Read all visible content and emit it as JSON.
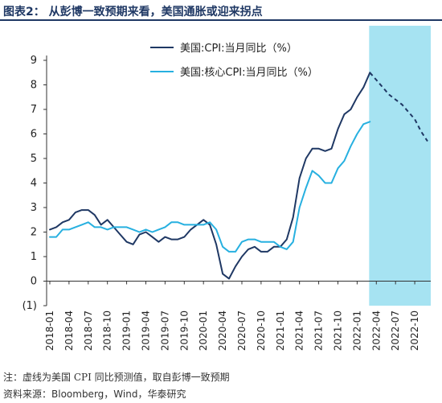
{
  "header": {
    "title": "图表2：  从彭博一致预期来看，美国通胀或迎来拐点",
    "rule_color": "#1f3864"
  },
  "footer": {
    "note": "注：虚线为美国 CPI 同比预测值，取自彭博一致预期",
    "source": "资料来源：Bloomberg，Wind，华泰研究"
  },
  "chart_data": {
    "type": "line",
    "title": "",
    "xlabel": "",
    "ylabel": "",
    "ylim": [
      -1,
      9
    ],
    "y_ticks": [
      "9",
      "8",
      "7",
      "6",
      "5",
      "4",
      "3",
      "2",
      "1",
      "0",
      "(1)"
    ],
    "x_tick_labels": [
      "2018-01",
      "2018-04",
      "2018-07",
      "2018-10",
      "2019-01",
      "2019-04",
      "2019-07",
      "2019-10",
      "2020-01",
      "2020-04",
      "2020-07",
      "2020-10",
      "2021-01",
      "2021-04",
      "2021-07",
      "2021-10",
      "2022-01",
      "2022-04",
      "2022-07",
      "2022-10"
    ],
    "x_range": [
      "2018-01",
      "2022-12"
    ],
    "grid": false,
    "legend_position": "top-center",
    "forecast_shading": {
      "from": "2022-03",
      "to": "2022-12",
      "color": "#a6e3f2"
    },
    "series": [
      {
        "name": "美国:CPI:当月同比（%）",
        "color": "#1f3864",
        "x": [
          "2018-01",
          "2018-02",
          "2018-03",
          "2018-04",
          "2018-05",
          "2018-06",
          "2018-07",
          "2018-08",
          "2018-09",
          "2018-10",
          "2018-11",
          "2018-12",
          "2019-01",
          "2019-02",
          "2019-03",
          "2019-04",
          "2019-05",
          "2019-06",
          "2019-07",
          "2019-08",
          "2019-09",
          "2019-10",
          "2019-11",
          "2019-12",
          "2020-01",
          "2020-02",
          "2020-03",
          "2020-04",
          "2020-05",
          "2020-06",
          "2020-07",
          "2020-08",
          "2020-09",
          "2020-10",
          "2020-11",
          "2020-12",
          "2021-01",
          "2021-02",
          "2021-03",
          "2021-04",
          "2021-05",
          "2021-06",
          "2021-07",
          "2021-08",
          "2021-09",
          "2021-10",
          "2021-11",
          "2021-12",
          "2022-01",
          "2022-02",
          "2022-03"
        ],
        "values": [
          2.1,
          2.2,
          2.4,
          2.5,
          2.8,
          2.9,
          2.9,
          2.7,
          2.3,
          2.5,
          2.2,
          1.9,
          1.6,
          1.5,
          1.9,
          2.0,
          1.8,
          1.6,
          1.8,
          1.7,
          1.7,
          1.8,
          2.1,
          2.3,
          2.5,
          2.3,
          1.5,
          0.3,
          0.1,
          0.6,
          1.0,
          1.3,
          1.4,
          1.2,
          1.2,
          1.4,
          1.4,
          1.7,
          2.6,
          4.2,
          5.0,
          5.4,
          5.4,
          5.3,
          5.4,
          6.2,
          6.8,
          7.0,
          7.5,
          7.9,
          8.5
        ],
        "forecast": {
          "x": [
            "2022-03",
            "2022-04",
            "2022-05",
            "2022-06",
            "2022-07",
            "2022-08",
            "2022-09",
            "2022-10",
            "2022-11",
            "2022-12"
          ],
          "values": [
            8.5,
            8.2,
            7.9,
            7.6,
            7.4,
            7.2,
            6.9,
            6.6,
            6.1,
            5.7
          ],
          "style": "dashed"
        }
      },
      {
        "name": "美国:核心CPI:当月同比（%）",
        "color": "#27b0e0",
        "x": [
          "2018-01",
          "2018-02",
          "2018-03",
          "2018-04",
          "2018-05",
          "2018-06",
          "2018-07",
          "2018-08",
          "2018-09",
          "2018-10",
          "2018-11",
          "2018-12",
          "2019-01",
          "2019-02",
          "2019-03",
          "2019-04",
          "2019-05",
          "2019-06",
          "2019-07",
          "2019-08",
          "2019-09",
          "2019-10",
          "2019-11",
          "2019-12",
          "2020-01",
          "2020-02",
          "2020-03",
          "2020-04",
          "2020-05",
          "2020-06",
          "2020-07",
          "2020-08",
          "2020-09",
          "2020-10",
          "2020-11",
          "2020-12",
          "2021-01",
          "2021-02",
          "2021-03",
          "2021-04",
          "2021-05",
          "2021-06",
          "2021-07",
          "2021-08",
          "2021-09",
          "2021-10",
          "2021-11",
          "2021-12",
          "2022-01",
          "2022-02",
          "2022-03"
        ],
        "values": [
          1.8,
          1.8,
          2.1,
          2.1,
          2.2,
          2.3,
          2.4,
          2.2,
          2.2,
          2.1,
          2.2,
          2.2,
          2.2,
          2.1,
          2.0,
          2.1,
          2.0,
          2.1,
          2.2,
          2.4,
          2.4,
          2.3,
          2.3,
          2.3,
          2.3,
          2.4,
          2.1,
          1.4,
          1.2,
          1.2,
          1.6,
          1.7,
          1.7,
          1.6,
          1.6,
          1.6,
          1.4,
          1.3,
          1.6,
          3.0,
          3.8,
          4.5,
          4.3,
          4.0,
          4.0,
          4.6,
          4.9,
          5.5,
          6.0,
          6.4,
          6.5
        ]
      }
    ]
  }
}
